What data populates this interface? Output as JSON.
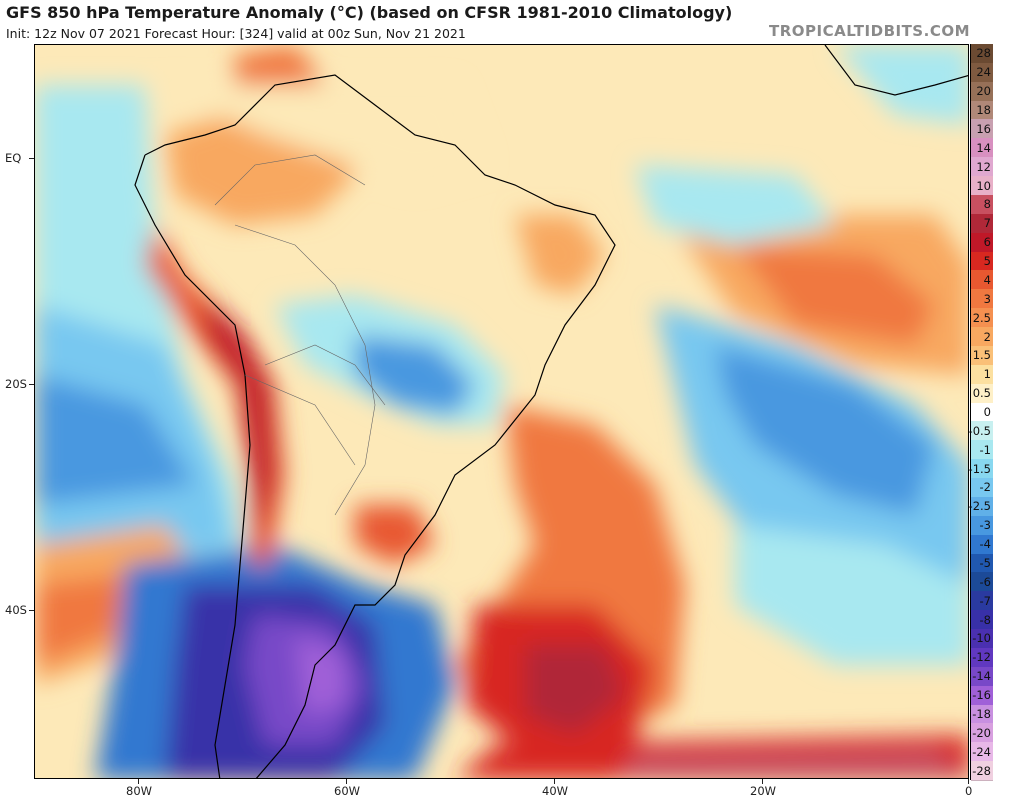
{
  "header": {
    "title": "GFS 850 hPa Temperature Anomaly (°C) (based on CFSR 1981-2010 Climatology)",
    "subtitle": "Init: 12z Nov 07 2021   Forecast Hour: [324]   valid at 00z Sun, Nov 21 2021",
    "brand": "TROPICALTIDBITS.COM"
  },
  "axes": {
    "lat_labels": [
      "EQ",
      "20S",
      "40S"
    ],
    "lon_labels": [
      "80W",
      "60W",
      "40W",
      "20W",
      "0"
    ]
  },
  "colorbar": {
    "labels": [
      "28",
      "24",
      "20",
      "18",
      "16",
      "14",
      "12",
      "10",
      "8",
      "7",
      "6",
      "5",
      "4",
      "3",
      "2.5",
      "2",
      "1.5",
      "1",
      "0.5",
      "0",
      "-0.5",
      "-1",
      "-1.5",
      "-2",
      "-2.5",
      "-3",
      "-4",
      "-5",
      "-6",
      "-7",
      "-8",
      "-10",
      "-12",
      "-14",
      "-16",
      "-18",
      "-20",
      "-24",
      "-28"
    ],
    "colors": [
      "#6b4a32",
      "#7f5a40",
      "#967058",
      "#b08878",
      "#c8a0b0",
      "#d890c0",
      "#e0a8d0",
      "#e8b0c8",
      "#c85060",
      "#b02838",
      "#c01828",
      "#d82820",
      "#e85830",
      "#f07840",
      "#f59050",
      "#f8a860",
      "#fac078",
      "#fce0a0",
      "#fef0c8",
      "#ffffff",
      "#c8f0f0",
      "#a8e8f0",
      "#88d8f0",
      "#78c8f0",
      "#60b0e8",
      "#4898e0",
      "#3078d0",
      "#2058b0",
      "#1c4a98",
      "#2a3aa0",
      "#3830a8",
      "#4a30b0",
      "#6038c0",
      "#7848c8",
      "#a060d8",
      "#c890e0",
      "#d8a0e0",
      "#e8b8e8",
      "#f0d0e0"
    ]
  }
}
